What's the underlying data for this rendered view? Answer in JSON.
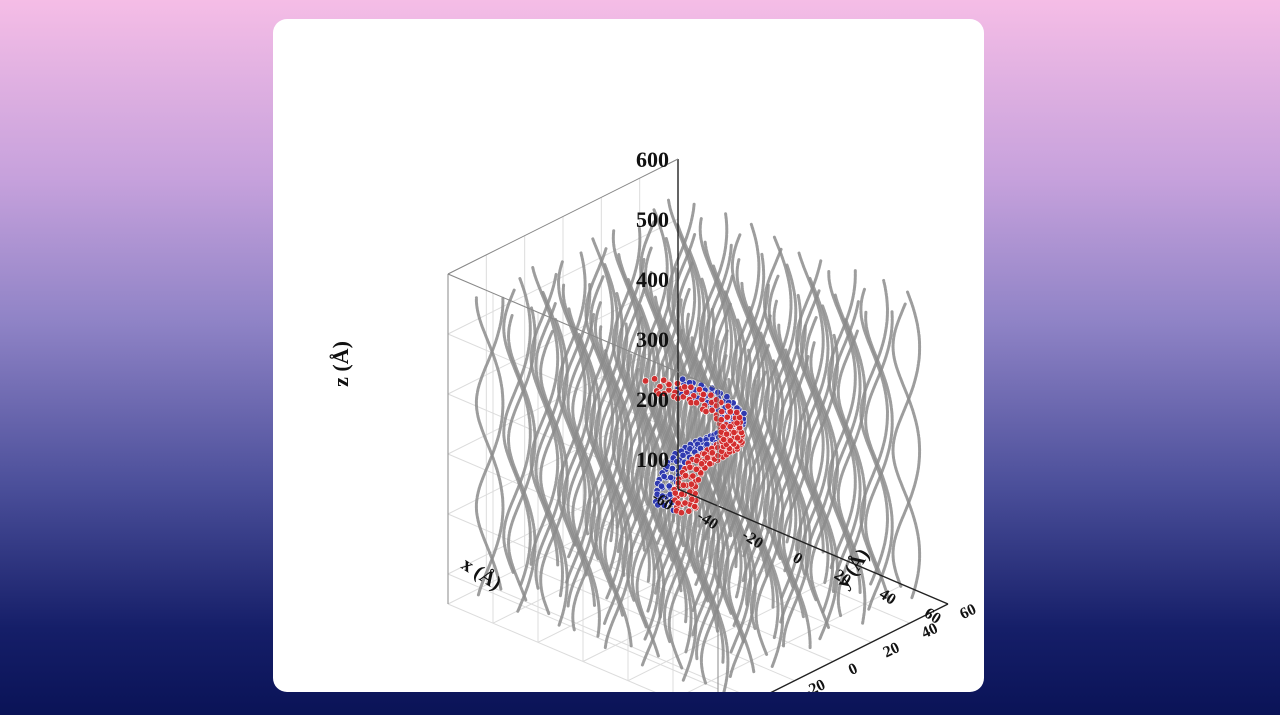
{
  "chart_data": {
    "type": "scatter",
    "projection": "3d",
    "title": "",
    "xlabel": "x (Å)",
    "ylabel": "y (Å)",
    "zlabel": "z (Å)",
    "xlim": [
      -60,
      60
    ],
    "ylim": [
      -60,
      60
    ],
    "zlim": [
      50,
      600
    ],
    "x_ticks": [
      "-60",
      "-40",
      "-20",
      "0",
      "20",
      "40",
      "60"
    ],
    "y_ticks": [
      "-60",
      "-40",
      "-20",
      "0",
      "20",
      "40",
      "60"
    ],
    "z_ticks": [
      "100",
      "200",
      "300",
      "400",
      "500",
      "600"
    ],
    "grid": true,
    "series": [
      {
        "color": "#8c8c8c",
        "description": "helical strands (lattice)",
        "x_range": [
          -50,
          50
        ],
        "y_range": [
          -50,
          50
        ],
        "z_range": [
          70,
          560
        ]
      },
      {
        "color": "#2a35b0",
        "points": [
          {
            "x": -40,
            "y": 30,
            "z": 100
          },
          {
            "x": -34,
            "y": 24,
            "z": 160
          },
          {
            "x": -22,
            "y": 16,
            "z": 230
          },
          {
            "x": -6,
            "y": 8,
            "z": 290
          },
          {
            "x": 10,
            "y": 0,
            "z": 340
          },
          {
            "x": 22,
            "y": -8,
            "z": 390
          },
          {
            "x": 28,
            "y": -14,
            "z": 430
          },
          {
            "x": 22,
            "y": -18,
            "z": 460
          },
          {
            "x": 10,
            "y": -22,
            "z": 465
          }
        ]
      },
      {
        "color": "#d42a2a",
        "points": [
          {
            "x": -34,
            "y": 34,
            "z": 95
          },
          {
            "x": -30,
            "y": 28,
            "z": 150
          },
          {
            "x": -18,
            "y": 20,
            "z": 220
          },
          {
            "x": -2,
            "y": 12,
            "z": 280
          },
          {
            "x": 12,
            "y": 4,
            "z": 330
          },
          {
            "x": 20,
            "y": -6,
            "z": 375
          },
          {
            "x": 24,
            "y": -12,
            "z": 420
          },
          {
            "x": 16,
            "y": -20,
            "z": 455
          },
          {
            "x": 2,
            "y": -26,
            "z": 460
          }
        ]
      }
    ]
  }
}
